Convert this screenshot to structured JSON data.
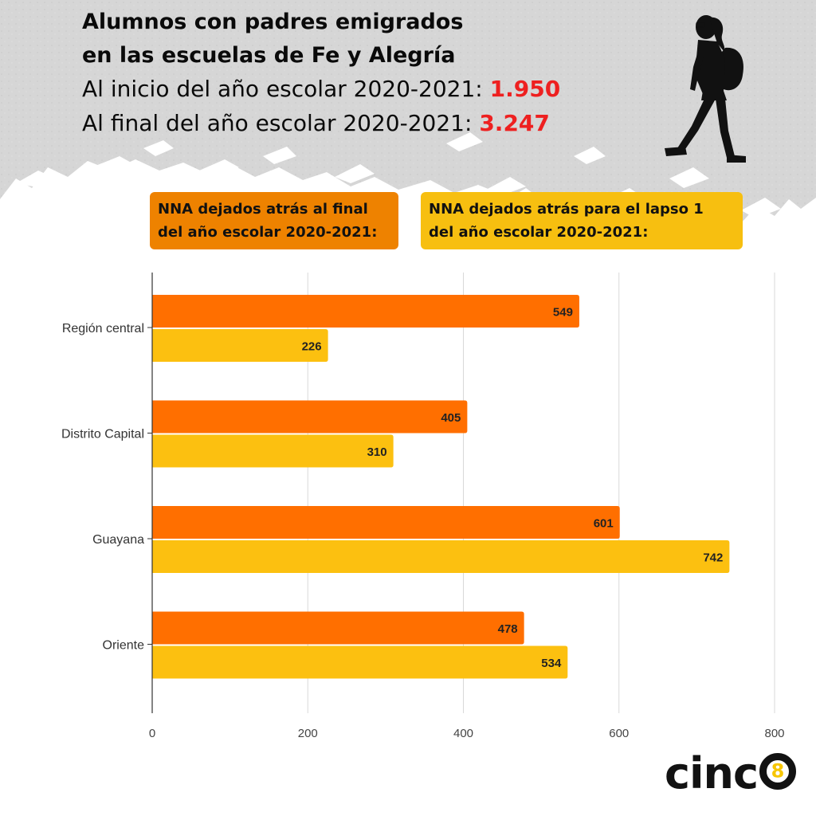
{
  "header": {
    "title_line1": "Alumnos con padres emigrados",
    "title_line2": "en las escuelas de Fe y Alegría",
    "start_label": "Al inicio del año escolar 2020-2021:",
    "start_value": "1.950",
    "end_label": "Al final del año escolar 2020-2021:",
    "end_value": "3.247",
    "accent_color": "#ee2020"
  },
  "legend": {
    "orange_line1": "NNA dejados atrás al final",
    "orange_line2": "del año escolar 2020-2021:",
    "yellow_line1": "NNA dejados atrás para el lapso 1",
    "yellow_line2": "del año escolar 2020-2021:"
  },
  "chart_data": {
    "type": "bar",
    "orientation": "horizontal",
    "categories": [
      "Región central",
      "Distrito Capital",
      "Guayana",
      "Oriente"
    ],
    "series": [
      {
        "values": [
          549,
          405,
          601,
          478
        ],
        "color": "#ff6f00"
      },
      {
        "values": [
          226,
          310,
          742,
          534
        ],
        "color": "#fcc010"
      }
    ],
    "xlim": [
      0,
      800
    ],
    "xticks": [
      0,
      200,
      400,
      600,
      800
    ],
    "grid": true
  },
  "logo": {
    "text": "cinc",
    "badge": "8"
  }
}
